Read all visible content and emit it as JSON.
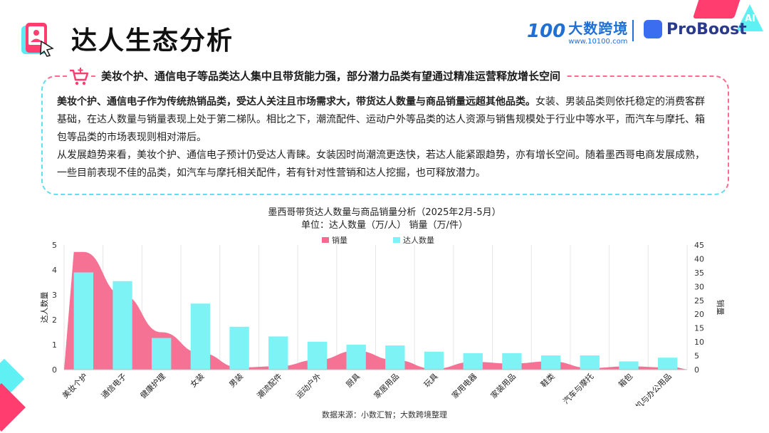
{
  "header": {
    "title": "达人生态分析",
    "logo1_mark": "100",
    "logo1_name": "大数跨境",
    "logo1_url": "www.10100.com",
    "logo2_name": "ProBoost",
    "ai_badge": "AI"
  },
  "summary": {
    "headline": "美妆个护、通信电子等品类达人集中且带货能力强，部分潜力品类有望通过精准运营释放增长空间",
    "para1_bold": "美妆个护、通信电子作为传统热销品类，受达人关注且市场需求大，带货达人数量与商品销量远超其他品类。",
    "para1_rest": "女装、男装品类则依托稳定的消费客群基础，在达人数量与销量表现上处于第二梯队。相比之下，潮流配件、运动户外等品类的达人资源与销售规模处于行业中等水平，而汽车与摩托、箱包等品类的市场表现则相对滞后。",
    "para2": "从发展趋势来看，美妆个护、通信电子预计仍受达人青睐。女装因时尚潮流更迭快，若达人能紧跟趋势，亦有增长空间。随着墨西哥电商发展成熟，一些目前表现不佳的品类，如汽车与摩托相关配件，若有针对性营销和达人挖掘，也可释放潜力。"
  },
  "chart_data": {
    "type": "bar",
    "title": "墨西哥带货达人数量与商品销量分析（2025年2月-5月）",
    "subtitle": "单位：达人数量（万/人）    销量（万/件）",
    "categories": [
      "美妆个护",
      "通信电子",
      "健康护理",
      "女装",
      "男装",
      "潮流配件",
      "运动户外",
      "厨具",
      "家居用品",
      "玩具",
      "家用电器",
      "家装用品",
      "鞋类",
      "汽车与摩托",
      "箱包",
      "计算机与办公用品"
    ],
    "series": [
      {
        "name": "销量",
        "chart": "area",
        "axis": "right",
        "color": "#f56a8f",
        "values": [
          42.5,
          27,
          13.5,
          6,
          0.8,
          1.2,
          3.5,
          6.8,
          3.5,
          0.3,
          2.8,
          2.2,
          3,
          0.6,
          1.2,
          0.8
        ]
      },
      {
        "name": "达人数量",
        "chart": "bar",
        "axis": "left",
        "color": "#7ef3f6",
        "values": [
          3.9,
          3.55,
          1.27,
          2.65,
          1.72,
          1.33,
          1.12,
          1.0,
          0.97,
          0.72,
          0.66,
          0.66,
          0.57,
          0.57,
          0.33,
          0.48
        ]
      }
    ],
    "ylabel": "达人数量",
    "ylabel_right": "销量",
    "ylim": [
      0,
      5
    ],
    "ylim_right": [
      0,
      45
    ],
    "yticks": [
      "0",
      "1",
      "2",
      "3",
      "4",
      "5"
    ],
    "yticks_right": [
      "0",
      "5",
      "10",
      "15",
      "20",
      "25",
      "30",
      "35",
      "40",
      "45"
    ],
    "legend_position": "top-center",
    "grid": false
  },
  "source": "数据来源：小数汇智；大数跨境整理"
}
